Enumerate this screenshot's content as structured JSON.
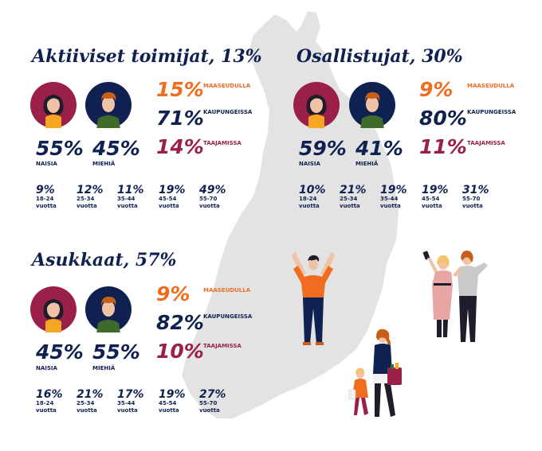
{
  "sections": [
    {
      "title": "Aktiiviset toimijat, 13%",
      "gender": [
        {
          "pct": "55%",
          "label": "NAISIA"
        },
        {
          "pct": "45%",
          "label": "MIEHIÄ"
        }
      ],
      "areas": [
        {
          "pct": "15%",
          "label": "MAASEUDULLA",
          "color": "#f06d1f"
        },
        {
          "pct": "71%",
          "label": "KAUPUNGEISSA",
          "color": "#0f2150"
        },
        {
          "pct": "14%",
          "label": "TAAJAMISSA",
          "color": "#9b1f4b"
        }
      ],
      "ages": [
        {
          "pct": "9%",
          "range": "18-24",
          "unit": "vuotta"
        },
        {
          "pct": "12%",
          "range": "25-34",
          "unit": "vuotta"
        },
        {
          "pct": "11%",
          "range": "35-44",
          "unit": "vuotta"
        },
        {
          "pct": "19%",
          "range": "45-54",
          "unit": "vuotta"
        },
        {
          "pct": "49%",
          "range": "55-70",
          "unit": "vuotta"
        }
      ]
    },
    {
      "title": "Osallistujat, 30%",
      "gender": [
        {
          "pct": "59%",
          "label": "NAISIA"
        },
        {
          "pct": "41%",
          "label": "MIEHIÄ"
        }
      ],
      "areas": [
        {
          "pct": "9%",
          "label": "MAASEUDULLA",
          "color": "#f06d1f"
        },
        {
          "pct": "80%",
          "label": "KAUPUNGEISSA",
          "color": "#0f2150"
        },
        {
          "pct": "11%",
          "label": "TAAJAMISSA",
          "color": "#9b1f4b"
        }
      ],
      "ages": [
        {
          "pct": "10%",
          "range": "18-24",
          "unit": "vuotta"
        },
        {
          "pct": "21%",
          "range": "25-34",
          "unit": "vuotta"
        },
        {
          "pct": "19%",
          "range": "35-44",
          "unit": "vuotta"
        },
        {
          "pct": "19%",
          "range": "45-54",
          "unit": "vuotta"
        },
        {
          "pct": "31%",
          "range": "55-70",
          "unit": "vuotta"
        }
      ]
    },
    {
      "title": "Asukkaat, 57%",
      "gender": [
        {
          "pct": "45%",
          "label": "NAISIA"
        },
        {
          "pct": "55%",
          "label": "MIEHIÄ"
        }
      ],
      "areas": [
        {
          "pct": "9%",
          "label": "MAASEUDULLA",
          "color": "#f06d1f"
        },
        {
          "pct": "82%",
          "label": "KAUPUNGEISSA",
          "color": "#0f2150"
        },
        {
          "pct": "10%",
          "label": "TAAJAMISSA",
          "color": "#9b1f4b"
        }
      ],
      "ages": [
        {
          "pct": "16%",
          "range": "18-24",
          "unit": "vuotta"
        },
        {
          "pct": "21%",
          "range": "25-34",
          "unit": "vuotta"
        },
        {
          "pct": "17%",
          "range": "35-44",
          "unit": "vuotta"
        },
        {
          "pct": "19%",
          "range": "45-54",
          "unit": "vuotta"
        },
        {
          "pct": "27%",
          "range": "55-70",
          "unit": "vuotta"
        }
      ]
    }
  ],
  "colors": {
    "navy": "#0f2150",
    "orange": "#f06d1f",
    "maroon": "#9b1f4b",
    "map": "#e3e3e3",
    "woman_bg": "#9b1f4b",
    "man_bg": "#0f2150"
  }
}
